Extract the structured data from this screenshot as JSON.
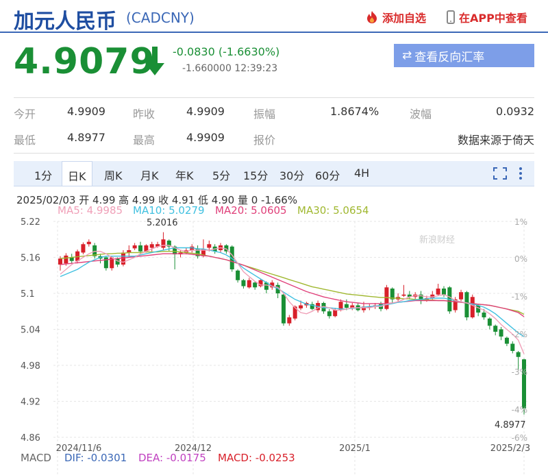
{
  "header": {
    "title": "加元人民币",
    "code": "(CADCNY)",
    "add_label": "添加自选",
    "app_label": "在APP中查看"
  },
  "quote": {
    "price": "4.9079",
    "change": "-0.0830 (-1.6630%)",
    "detail": "-1.660000 12:39:23",
    "reverse_label": "查看反向汇率"
  },
  "stats": {
    "open_label": "今开",
    "open": "4.9909",
    "prev_label": "昨收",
    "prev": "4.9909",
    "amp_label": "振幅",
    "amp": "1.8674%",
    "wave_label": "波幅",
    "wave": "0.0932",
    "low_label": "最低",
    "low": "4.8977",
    "high_label": "最高",
    "high": "4.9909",
    "quote_label": "报价",
    "source": "数据来源于倚天"
  },
  "tabs": [
    "1分",
    "日K",
    "周K",
    "月K",
    "年K",
    "5分",
    "15分",
    "30分",
    "60分",
    "4H"
  ],
  "active_tab": "日K",
  "chart_info": "2025/02/03 开 4.99 高 4.99 收 4.91 低 4.90 量 0 -1.66%",
  "ma": {
    "ma5": "MA5: 4.9985",
    "ma10": "MA10: 5.0279",
    "ma20": "MA20: 5.0605",
    "ma30": "MA30: 5.0654"
  },
  "macd": {
    "label": "MACD",
    "dif": "DIF: -0.0301",
    "dea": "DEA: -0.0175",
    "macd": "MACD: -0.0253"
  },
  "colors": {
    "up": "#d8202a",
    "down": "#1a8f35",
    "ma5": "#f0a0b8",
    "ma10": "#40c0e0",
    "ma20": "#e0407a",
    "ma30": "#a0b830",
    "accent": "#1f4ea1"
  },
  "chart_data": {
    "type": "candlestick",
    "y_ticks": [
      "5.22",
      "5.16",
      "5.1",
      "5.04",
      "4.98",
      "4.92",
      "4.86"
    ],
    "ylim": [
      4.86,
      5.22
    ],
    "pct_ticks": [
      "1%",
      "0%",
      "-1%",
      "-2%",
      "-3%",
      "-4%",
      "-6%"
    ],
    "x_labels": [
      "2024/11/6",
      "2024/12",
      "2025/1",
      "2025/2/3"
    ],
    "annotations": {
      "high": "5.2016",
      "low": "4.8977"
    },
    "watermark": "新浪财经",
    "candles": [
      [
        5.148,
        5.158,
        5.138,
        5.162
      ],
      [
        5.15,
        5.163,
        5.146,
        5.167
      ],
      [
        5.16,
        5.154,
        5.15,
        5.166
      ],
      [
        5.154,
        5.17,
        5.15,
        5.173
      ],
      [
        5.168,
        5.182,
        5.165,
        5.185
      ],
      [
        5.182,
        5.186,
        5.178,
        5.19
      ],
      [
        5.18,
        5.162,
        5.158,
        5.184
      ],
      [
        5.162,
        5.158,
        5.15,
        5.166
      ],
      [
        5.16,
        5.142,
        5.138,
        5.162
      ],
      [
        5.142,
        5.16,
        5.138,
        5.162
      ],
      [
        5.158,
        5.148,
        5.144,
        5.16
      ],
      [
        5.148,
        5.168,
        5.145,
        5.172
      ],
      [
        5.168,
        5.172,
        5.16,
        5.18
      ],
      [
        5.175,
        5.18,
        5.172,
        5.184
      ],
      [
        5.18,
        5.17,
        5.165,
        5.186
      ],
      [
        5.17,
        5.18,
        5.168,
        5.182
      ],
      [
        5.176,
        5.182,
        5.17,
        5.186
      ],
      [
        5.178,
        5.182,
        5.176,
        5.186
      ],
      [
        5.176,
        5.19,
        5.172,
        5.202
      ],
      [
        5.188,
        5.178,
        5.17,
        5.19
      ],
      [
        5.178,
        5.165,
        5.14,
        5.18
      ],
      [
        5.165,
        5.168,
        5.16,
        5.172
      ],
      [
        5.168,
        5.172,
        5.165,
        5.176
      ],
      [
        5.172,
        5.178,
        5.168,
        5.182
      ],
      [
        5.175,
        5.162,
        5.158,
        5.18
      ],
      [
        5.162,
        5.174,
        5.16,
        5.19
      ],
      [
        5.176,
        5.182,
        5.17,
        5.188
      ],
      [
        5.178,
        5.17,
        5.166,
        5.182
      ],
      [
        5.172,
        5.18,
        5.168,
        5.184
      ],
      [
        5.18,
        5.17,
        5.166,
        5.182
      ],
      [
        5.178,
        5.14,
        5.136,
        5.18
      ],
      [
        5.138,
        5.122,
        5.118,
        5.14
      ],
      [
        5.122,
        5.112,
        5.108,
        5.124
      ],
      [
        5.11,
        5.122,
        5.108,
        5.126
      ],
      [
        5.118,
        5.11,
        5.106,
        5.12
      ],
      [
        5.112,
        5.122,
        5.11,
        5.124
      ],
      [
        5.118,
        5.106,
        5.1,
        5.12
      ],
      [
        5.11,
        5.118,
        5.106,
        5.122
      ],
      [
        5.114,
        5.1,
        5.092,
        5.118
      ],
      [
        5.098,
        5.05,
        5.046,
        5.1
      ],
      [
        5.05,
        5.06,
        5.046,
        5.064
      ],
      [
        5.058,
        5.078,
        5.055,
        5.08
      ],
      [
        5.075,
        5.08,
        5.072,
        5.088
      ],
      [
        5.08,
        5.084,
        5.076,
        5.086
      ],
      [
        5.082,
        5.074,
        5.072,
        5.086
      ],
      [
        5.072,
        5.084,
        5.068,
        5.088
      ],
      [
        5.084,
        5.07,
        5.066,
        5.086
      ],
      [
        5.07,
        5.062,
        5.058,
        5.074
      ],
      [
        5.062,
        5.072,
        5.06,
        5.076
      ],
      [
        5.072,
        5.086,
        5.07,
        5.09
      ],
      [
        5.082,
        5.076,
        5.072,
        5.09
      ],
      [
        5.076,
        5.08,
        5.072,
        5.084
      ],
      [
        5.08,
        5.072,
        5.07,
        5.084
      ],
      [
        5.072,
        5.078,
        5.068,
        5.086
      ],
      [
        5.076,
        5.078,
        5.072,
        5.082
      ],
      [
        5.078,
        5.08,
        5.074,
        5.084
      ],
      [
        5.082,
        5.074,
        5.07,
        5.086
      ],
      [
        5.074,
        5.11,
        5.072,
        5.114
      ],
      [
        5.108,
        5.09,
        5.084,
        5.11
      ],
      [
        5.09,
        5.094,
        5.086,
        5.1
      ],
      [
        5.096,
        5.098,
        5.094,
        5.114
      ],
      [
        5.098,
        5.094,
        5.09,
        5.104
      ],
      [
        5.094,
        5.098,
        5.09,
        5.102
      ],
      [
        5.098,
        5.088,
        5.082,
        5.104
      ],
      [
        5.088,
        5.092,
        5.086,
        5.096
      ],
      [
        5.092,
        5.098,
        5.09,
        5.104
      ],
      [
        5.098,
        5.108,
        5.096,
        5.116
      ],
      [
        5.108,
        5.098,
        5.094,
        5.112
      ],
      [
        5.11,
        5.07,
        5.066,
        5.112
      ],
      [
        5.072,
        5.09,
        5.068,
        5.094
      ],
      [
        5.09,
        5.102,
        5.086,
        5.106
      ],
      [
        5.102,
        5.06,
        5.055,
        5.104
      ],
      [
        5.06,
        5.094,
        5.058,
        5.098
      ],
      [
        5.08,
        5.068,
        5.062,
        5.082
      ],
      [
        5.068,
        5.06,
        5.056,
        5.074
      ],
      [
        5.058,
        5.046,
        5.04,
        5.06
      ],
      [
        5.046,
        5.036,
        5.03,
        5.048
      ],
      [
        5.04,
        5.028,
        5.022,
        5.044
      ],
      [
        5.026,
        5.016,
        5.012,
        5.028
      ],
      [
        5.016,
        5.004,
        5.0,
        5.02
      ],
      [
        5.002,
        4.994,
        4.972,
        5.004
      ],
      [
        4.99,
        4.908,
        4.898,
        4.991
      ]
    ],
    "ma5": [
      5.132,
      5.14,
      5.148,
      5.154,
      5.16,
      5.166,
      5.17,
      5.17,
      5.166,
      5.16,
      5.154,
      5.152,
      5.156,
      5.16,
      5.166,
      5.17,
      5.174,
      5.178,
      5.18,
      5.18,
      5.176,
      5.172,
      5.17,
      5.172,
      5.172,
      5.172,
      5.172,
      5.174,
      5.176,
      5.174,
      5.164,
      5.15,
      5.136,
      5.128,
      5.12,
      5.114,
      5.114,
      5.112,
      5.11,
      5.1,
      5.086,
      5.076,
      5.068,
      5.066,
      5.07,
      5.076,
      5.078,
      5.076,
      5.072,
      5.072,
      5.074,
      5.076,
      5.076,
      5.076,
      5.076,
      5.078,
      5.078,
      5.082,
      5.084,
      5.086,
      5.09,
      5.094,
      5.096,
      5.096,
      5.094,
      5.094,
      5.096,
      5.098,
      5.094,
      5.088,
      5.086,
      5.084,
      5.08,
      5.076,
      5.072,
      5.066,
      5.058,
      5.048,
      5.04,
      5.032,
      5.022,
      4.999
    ],
    "ma10": [
      5.128,
      5.132,
      5.136,
      5.14,
      5.146,
      5.152,
      5.156,
      5.16,
      5.162,
      5.162,
      5.162,
      5.162,
      5.162,
      5.162,
      5.164,
      5.166,
      5.168,
      5.17,
      5.172,
      5.174,
      5.176,
      5.176,
      5.176,
      5.176,
      5.174,
      5.174,
      5.172,
      5.17,
      5.168,
      5.164,
      5.158,
      5.15,
      5.142,
      5.136,
      5.13,
      5.124,
      5.118,
      5.112,
      5.108,
      5.102,
      5.096,
      5.09,
      5.086,
      5.082,
      5.08,
      5.078,
      5.076,
      5.076,
      5.075,
      5.074,
      5.074,
      5.075,
      5.076,
      5.077,
      5.078,
      5.079,
      5.08,
      5.081,
      5.083,
      5.085,
      5.086,
      5.088,
      5.089,
      5.09,
      5.091,
      5.092,
      5.092,
      5.092,
      5.09,
      5.088,
      5.086,
      5.084,
      5.082,
      5.08,
      5.077,
      5.072,
      5.066,
      5.058,
      5.05,
      5.042,
      5.034,
      5.028
    ],
    "ma20": [
      5.148,
      5.149,
      5.15,
      5.151,
      5.152,
      5.153,
      5.154,
      5.155,
      5.156,
      5.157,
      5.158,
      5.159,
      5.16,
      5.161,
      5.162,
      5.163,
      5.164,
      5.165,
      5.166,
      5.166,
      5.166,
      5.166,
      5.166,
      5.165,
      5.164,
      5.163,
      5.162,
      5.16,
      5.158,
      5.156,
      5.153,
      5.15,
      5.147,
      5.143,
      5.139,
      5.135,
      5.131,
      5.127,
      5.123,
      5.119,
      5.115,
      5.111,
      5.107,
      5.103,
      5.1,
      5.097,
      5.094,
      5.092,
      5.09,
      5.088,
      5.086,
      5.085,
      5.084,
      5.083,
      5.083,
      5.083,
      5.083,
      5.083,
      5.084,
      5.085,
      5.086,
      5.087,
      5.088,
      5.088,
      5.088,
      5.088,
      5.088,
      5.088,
      5.087,
      5.086,
      5.085,
      5.084,
      5.083,
      5.082,
      5.081,
      5.08,
      5.078,
      5.076,
      5.074,
      5.071,
      5.068,
      5.061
    ],
    "ma30": [
      5.158,
      5.159,
      5.16,
      5.161,
      5.162,
      5.163,
      5.164,
      5.165,
      5.166,
      5.166,
      5.167,
      5.167,
      5.168,
      5.168,
      5.168,
      5.169,
      5.169,
      5.169,
      5.17,
      5.17,
      5.17,
      5.169,
      5.168,
      5.167,
      5.166,
      5.164,
      5.162,
      5.16,
      5.158,
      5.156,
      5.153,
      5.15,
      5.147,
      5.144,
      5.141,
      5.138,
      5.135,
      5.132,
      5.129,
      5.126,
      5.123,
      5.12,
      5.117,
      5.114,
      5.111,
      5.109,
      5.107,
      5.105,
      5.103,
      5.101,
      5.099,
      5.098,
      5.097,
      5.096,
      5.095,
      5.094,
      5.093,
      5.093,
      5.092,
      5.092,
      5.091,
      5.091,
      5.09,
      5.09,
      5.089,
      5.089,
      5.088,
      5.088,
      5.087,
      5.086,
      5.085,
      5.084,
      5.083,
      5.082,
      5.081,
      5.08,
      5.078,
      5.076,
      5.074,
      5.072,
      5.07,
      5.065
    ]
  }
}
